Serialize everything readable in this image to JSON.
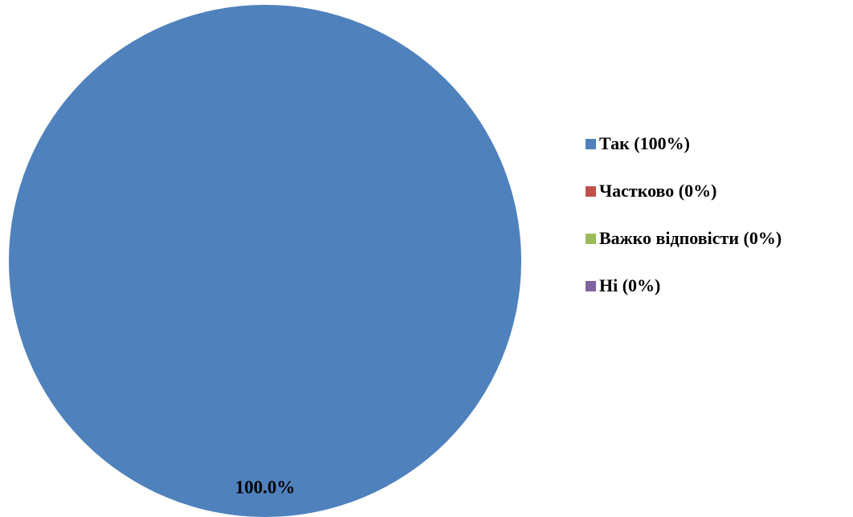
{
  "chart_data": {
    "type": "pie",
    "categories": [
      "Так (100%)",
      "Частково (0%)",
      "Важко відповісти (0%)",
      "Ні (0%)"
    ],
    "values": [
      100,
      0,
      0,
      0
    ],
    "colors": [
      "#4f81bd",
      "#c0504d",
      "#9bbb59",
      "#8064a2"
    ],
    "data_labels": [
      "100.0%"
    ],
    "legend_position": "right"
  }
}
